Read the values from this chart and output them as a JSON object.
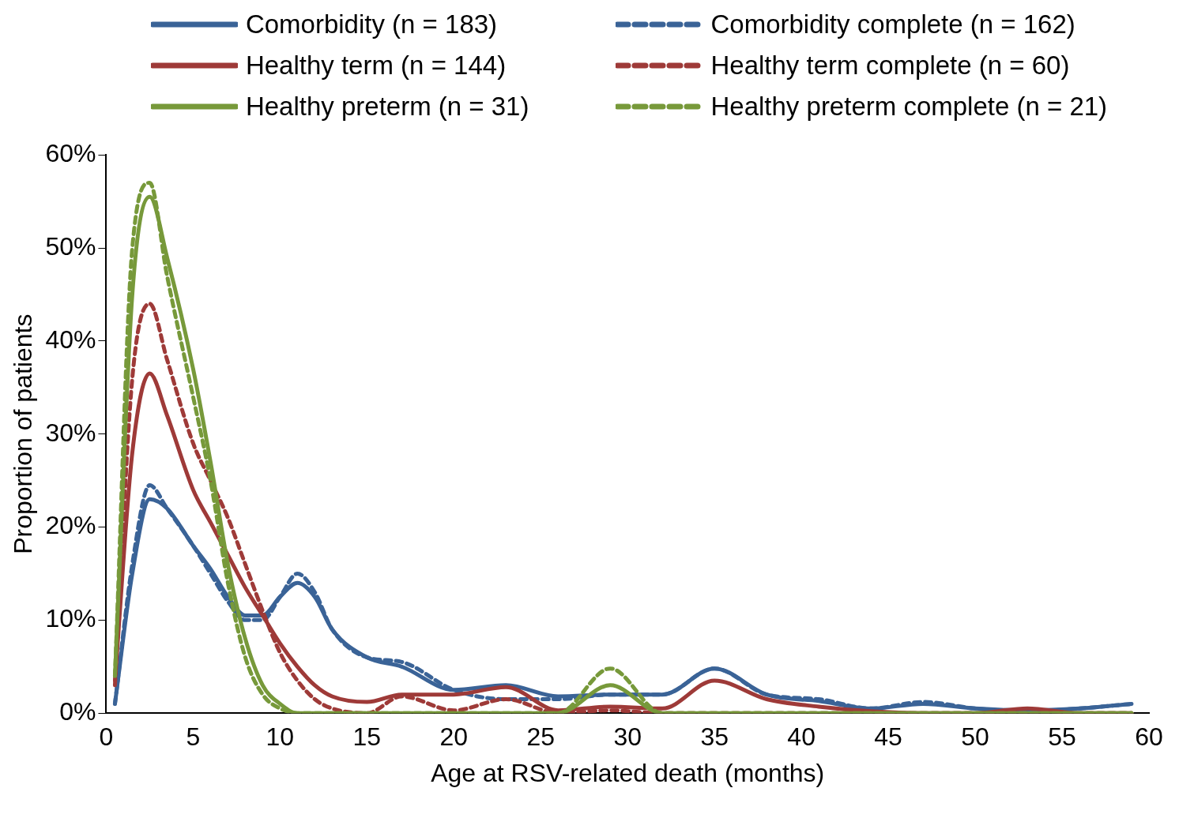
{
  "chart_data": {
    "type": "line",
    "xlabel": "Age at RSV-related death (months)",
    "ylabel": "Proportion of patients",
    "x": [
      0.5,
      1.5,
      2.5,
      3.5,
      5,
      6,
      7,
      8,
      9,
      10,
      11,
      12,
      13,
      15,
      17,
      20,
      23,
      26,
      29,
      32,
      35,
      38,
      41,
      44,
      47,
      50,
      53,
      56,
      59
    ],
    "series": [
      {
        "name": "Comorbidity (n = 183)",
        "color": "#3a6397",
        "line_style": "solid",
        "values": [
          1,
          15,
          23,
          22,
          18,
          15.5,
          12.5,
          10.5,
          10.5,
          12.5,
          14,
          12.5,
          9,
          6,
          5,
          2.5,
          3,
          1.8,
          2,
          2,
          4.8,
          2,
          1.3,
          0.5,
          1,
          0.5,
          0.3,
          0.5,
          1
        ]
      },
      {
        "name": "Comorbidity complete (n = 162)",
        "color": "#3a6397",
        "line_style": "dashed",
        "values": [
          1,
          16,
          24.5,
          22,
          18,
          15,
          12,
          10,
          10,
          12.5,
          15,
          13,
          9,
          6,
          5.5,
          2.5,
          1.5,
          1.5,
          2,
          2,
          4.8,
          2,
          1.5,
          0.5,
          1.2,
          0.5,
          0.2,
          0.5,
          1
        ]
      },
      {
        "name": "Healthy term (n = 144)",
        "color": "#9e3a38",
        "line_style": "solid",
        "values": [
          3.5,
          28,
          36.5,
          32,
          24,
          20.5,
          17,
          13.5,
          10.5,
          7.5,
          5,
          3,
          1.8,
          1.2,
          2,
          2,
          2.8,
          0.3,
          0.7,
          0.5,
          3.5,
          1.5,
          0.7,
          0.2,
          0,
          0,
          0.5,
          0,
          0
        ]
      },
      {
        "name": "Healthy term complete (n = 60)",
        "color": "#9e3a38",
        "line_style": "dashed",
        "values": [
          3,
          36,
          44,
          38,
          29,
          25,
          21,
          16,
          11,
          6.5,
          3.5,
          1.5,
          0.5,
          0,
          1.8,
          0.3,
          1.5,
          0,
          0.3,
          0,
          0,
          0,
          0,
          0,
          0,
          0,
          0,
          0,
          0
        ]
      },
      {
        "name": "Healthy preterm (n = 31)",
        "color": "#77993a",
        "line_style": "solid",
        "values": [
          4,
          45,
          55.5,
          49,
          37,
          27,
          16,
          8,
          3,
          1,
          0,
          0,
          0,
          0,
          0,
          0,
          0,
          0,
          3,
          0,
          0,
          0,
          0,
          0,
          0,
          0,
          0,
          0,
          0
        ]
      },
      {
        "name": "Healthy preterm complete (n = 21)",
        "color": "#77993a",
        "line_style": "dashed",
        "values": [
          4,
          50,
          57,
          47,
          34,
          25,
          14,
          6,
          2,
          0.5,
          0,
          0,
          0,
          0,
          0,
          0,
          0,
          0,
          4.8,
          0,
          0,
          0,
          0,
          0,
          0,
          0,
          0,
          0,
          0
        ]
      }
    ],
    "xlim": [
      0,
      60
    ],
    "xticks": [
      0,
      5,
      10,
      15,
      20,
      25,
      30,
      35,
      40,
      45,
      50,
      55,
      60
    ],
    "ylim": [
      0,
      60
    ],
    "yticks": [
      {
        "value": 0,
        "label": "0%"
      },
      {
        "value": 10,
        "label": "10%"
      },
      {
        "value": 20,
        "label": "20%"
      },
      {
        "value": 30,
        "label": "30%"
      },
      {
        "value": 40,
        "label": "40%"
      },
      {
        "value": 50,
        "label": "50%"
      },
      {
        "value": 60,
        "label": "60%"
      }
    ],
    "grid": false,
    "legend": "top",
    "marker": "none"
  }
}
